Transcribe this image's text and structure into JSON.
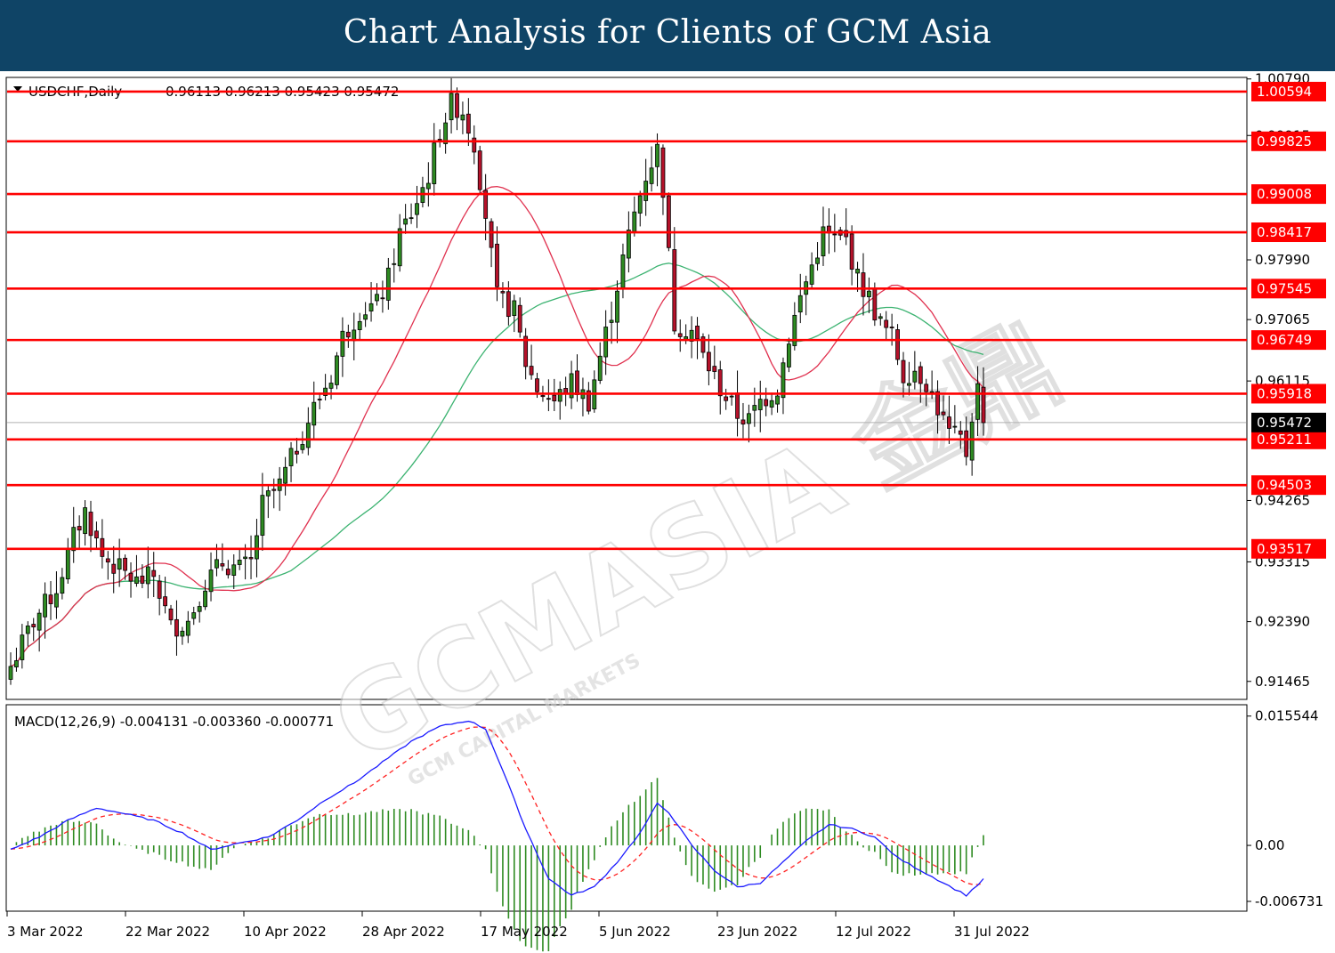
{
  "banner": {
    "title": "Chart Analysis for Clients of GCM Asia"
  },
  "chart_data": [
    {
      "type": "candlestick",
      "symbol_label": "USDCHF,Daily",
      "ohlc_label": "0.96113 0.96213 0.95423 0.95472",
      "last_price": {
        "value": 0.95472,
        "label": "0.95472"
      },
      "ylim": [
        0.912,
        1.008
      ],
      "y_ticks": [
        {
          "value": 1.0079,
          "label": "1.00790"
        },
        {
          "value": 0.99915,
          "label": "0.99915"
        },
        {
          "value": 0.9799,
          "label": "0.97990"
        },
        {
          "value": 0.97065,
          "label": "0.97065"
        },
        {
          "value": 0.96115,
          "label": "0.96115"
        },
        {
          "value": 0.94265,
          "label": "0.94265"
        },
        {
          "value": 0.93315,
          "label": "0.93315"
        },
        {
          "value": 0.9239,
          "label": "0.92390"
        },
        {
          "value": 0.91465,
          "label": "0.91465"
        }
      ],
      "levels": [
        {
          "value": 1.00594,
          "label": "1.00594"
        },
        {
          "value": 0.99825,
          "label": "0.99825"
        },
        {
          "value": 0.99008,
          "label": "0.99008"
        },
        {
          "value": 0.98417,
          "label": "0.98417"
        },
        {
          "value": 0.97545,
          "label": "0.97545"
        },
        {
          "value": 0.96749,
          "label": "0.96749"
        },
        {
          "value": 0.95918,
          "label": "0.95918"
        },
        {
          "value": 0.95211,
          "label": "0.95211"
        },
        {
          "value": 0.94503,
          "label": "0.94503"
        },
        {
          "value": 0.93517,
          "label": "0.93517"
        }
      ],
      "x_labels": [
        "3 Mar 2022",
        "22 Mar 2022",
        "10 Apr 2022",
        "28 Apr 2022",
        "17 May 2022",
        "5 Jun 2022",
        "23 Jun 2022",
        "12 Jul 2022",
        "31 Jul 2022"
      ],
      "moving_averages": [
        {
          "color": "#e0314f"
        },
        {
          "color": "#3cb371"
        }
      ],
      "close_anchors": [
        [
          0,
          0.917
        ],
        [
          4,
          0.924
        ],
        [
          8,
          0.929
        ],
        [
          11,
          0.937
        ],
        [
          13,
          0.941
        ],
        [
          16,
          0.934
        ],
        [
          19,
          0.932
        ],
        [
          22,
          0.93
        ],
        [
          25,
          0.931
        ],
        [
          28,
          0.923
        ],
        [
          31,
          0.924
        ],
        [
          34,
          0.93
        ],
        [
          37,
          0.933
        ],
        [
          40,
          0.932
        ],
        [
          42,
          0.933
        ],
        [
          44,
          0.942
        ],
        [
          47,
          0.945
        ],
        [
          50,
          0.951
        ],
        [
          53,
          0.957
        ],
        [
          56,
          0.962
        ],
        [
          58,
          0.968
        ],
        [
          61,
          0.972
        ],
        [
          64,
          0.973
        ],
        [
          66,
          0.977
        ],
        [
          68,
          0.984
        ],
        [
          70,
          0.987
        ],
        [
          73,
          0.993
        ],
        [
          75,
          1.0
        ],
        [
          77,
          1.004
        ],
        [
          79,
          1.003
        ],
        [
          81,
          0.998
        ],
        [
          83,
          0.987
        ],
        [
          85,
          0.974
        ],
        [
          88,
          0.972
        ],
        [
          90,
          0.964
        ],
        [
          92,
          0.96
        ],
        [
          95,
          0.958
        ],
        [
          98,
          0.961
        ],
        [
          101,
          0.958
        ],
        [
          103,
          0.965
        ],
        [
          105,
          0.972
        ],
        [
          107,
          0.98
        ],
        [
          109,
          0.987
        ],
        [
          111,
          0.993
        ],
        [
          113,
          0.997
        ],
        [
          114,
          0.991
        ],
        [
          116,
          0.97
        ],
        [
          119,
          0.969
        ],
        [
          121,
          0.965
        ],
        [
          124,
          0.96
        ],
        [
          127,
          0.956
        ],
        [
          129,
          0.955
        ],
        [
          131,
          0.958
        ],
        [
          134,
          0.96
        ],
        [
          136,
          0.968
        ],
        [
          138,
          0.974
        ],
        [
          140,
          0.979
        ],
        [
          142,
          0.984
        ],
        [
          144,
          0.983
        ],
        [
          146,
          0.983
        ],
        [
          148,
          0.977
        ],
        [
          150,
          0.974
        ],
        [
          152,
          0.97
        ],
        [
          154,
          0.968
        ],
        [
          156,
          0.962
        ],
        [
          158,
          0.963
        ],
        [
          160,
          0.961
        ],
        [
          162,
          0.957
        ],
        [
          164,
          0.953
        ],
        [
          166,
          0.952
        ],
        [
          167,
          0.95
        ],
        [
          168,
          0.956
        ],
        [
          169,
          0.96
        ],
        [
          170,
          0.9547
        ]
      ]
    },
    {
      "type": "macd",
      "label": "MACD(12,26,9) -0.004131 -0.003360 -0.000771",
      "ylim": [
        -0.0078,
        0.0168
      ],
      "y_ticks": [
        {
          "value": 0.015544,
          "label": "0.015544"
        },
        {
          "value": 0.0,
          "label": "0.00"
        },
        {
          "value": -0.006731,
          "label": "-0.006731"
        }
      ],
      "macd_color": "#1a1aff",
      "signal_color": "#ff2222",
      "histogram_color": "#2e8b22",
      "macd_anchors": [
        [
          0,
          -0.0005
        ],
        [
          5,
          0.001
        ],
        [
          10,
          0.003
        ],
        [
          15,
          0.0045
        ],
        [
          20,
          0.0038
        ],
        [
          25,
          0.003
        ],
        [
          30,
          0.0015
        ],
        [
          35,
          -0.0005
        ],
        [
          40,
          0.0003
        ],
        [
          45,
          0.001
        ],
        [
          50,
          0.003
        ],
        [
          55,
          0.0055
        ],
        [
          60,
          0.0075
        ],
        [
          65,
          0.01
        ],
        [
          70,
          0.0125
        ],
        [
          75,
          0.0143
        ],
        [
          80,
          0.015
        ],
        [
          83,
          0.014
        ],
        [
          86,
          0.009
        ],
        [
          90,
          0.002
        ],
        [
          94,
          -0.004
        ],
        [
          98,
          -0.006
        ],
        [
          102,
          -0.005
        ],
        [
          106,
          -0.002
        ],
        [
          110,
          0.0015
        ],
        [
          113,
          0.005
        ],
        [
          115,
          0.004
        ],
        [
          119,
          0.0
        ],
        [
          123,
          -0.003
        ],
        [
          127,
          -0.005
        ],
        [
          131,
          -0.0045
        ],
        [
          135,
          -0.002
        ],
        [
          139,
          0.0005
        ],
        [
          143,
          0.0025
        ],
        [
          147,
          0.002
        ],
        [
          151,
          0.001
        ],
        [
          155,
          -0.0015
        ],
        [
          159,
          -0.003
        ],
        [
          163,
          -0.0045
        ],
        [
          167,
          -0.006
        ],
        [
          170,
          -0.0041
        ]
      ]
    }
  ]
}
